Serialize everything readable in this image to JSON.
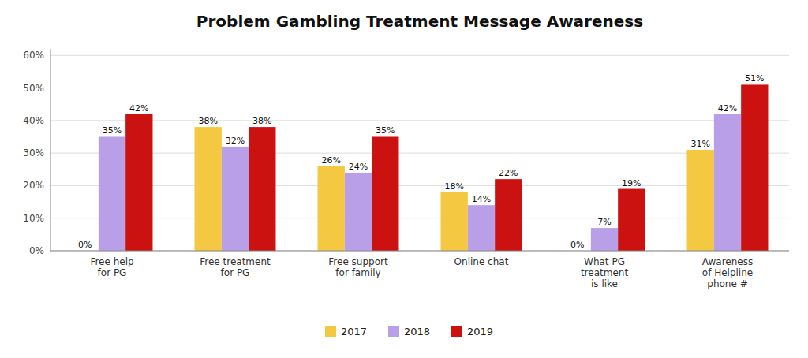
{
  "chart_data": {
    "type": "bar",
    "title": "Problem Gambling Treatment Message Awareness",
    "categories": [
      "Free help\nfor PG",
      "Free treatment\nfor PG",
      "Free support\nfor family",
      "Online chat",
      "What PG\ntreatment\nis like",
      "Awareness\nof Helpline\nphone #"
    ],
    "series": [
      {
        "name": "2017",
        "color": "#F5C842",
        "values": [
          0,
          38,
          26,
          18,
          0,
          31
        ],
        "value_labels": [
          "0%",
          "38%",
          "26%",
          "18%",
          "0%",
          "31%"
        ]
      },
      {
        "name": "2018",
        "color": "#B89FE8",
        "values": [
          35,
          32,
          24,
          14,
          7,
          42
        ],
        "value_labels": [
          "35%",
          "32%",
          "24%",
          "14%",
          "7%",
          "42%"
        ]
      },
      {
        "name": "2019",
        "color": "#CC1111",
        "values": [
          42,
          38,
          35,
          22,
          19,
          51
        ],
        "value_labels": [
          "42%",
          "38%",
          "35%",
          "22%",
          "19%",
          "51%"
        ]
      }
    ],
    "ylim": [
      0,
      62
    ],
    "yticks": [
      {
        "value": 0,
        "label": "0%"
      },
      {
        "value": 10,
        "label": "10%"
      },
      {
        "value": 20,
        "label": "20%"
      },
      {
        "value": 30,
        "label": "30%"
      },
      {
        "value": 40,
        "label": "40%"
      },
      {
        "value": 50,
        "label": "50%"
      },
      {
        "value": 60,
        "label": "60%"
      }
    ],
    "grid": true,
    "data_labels": true,
    "legend": "bottom"
  }
}
